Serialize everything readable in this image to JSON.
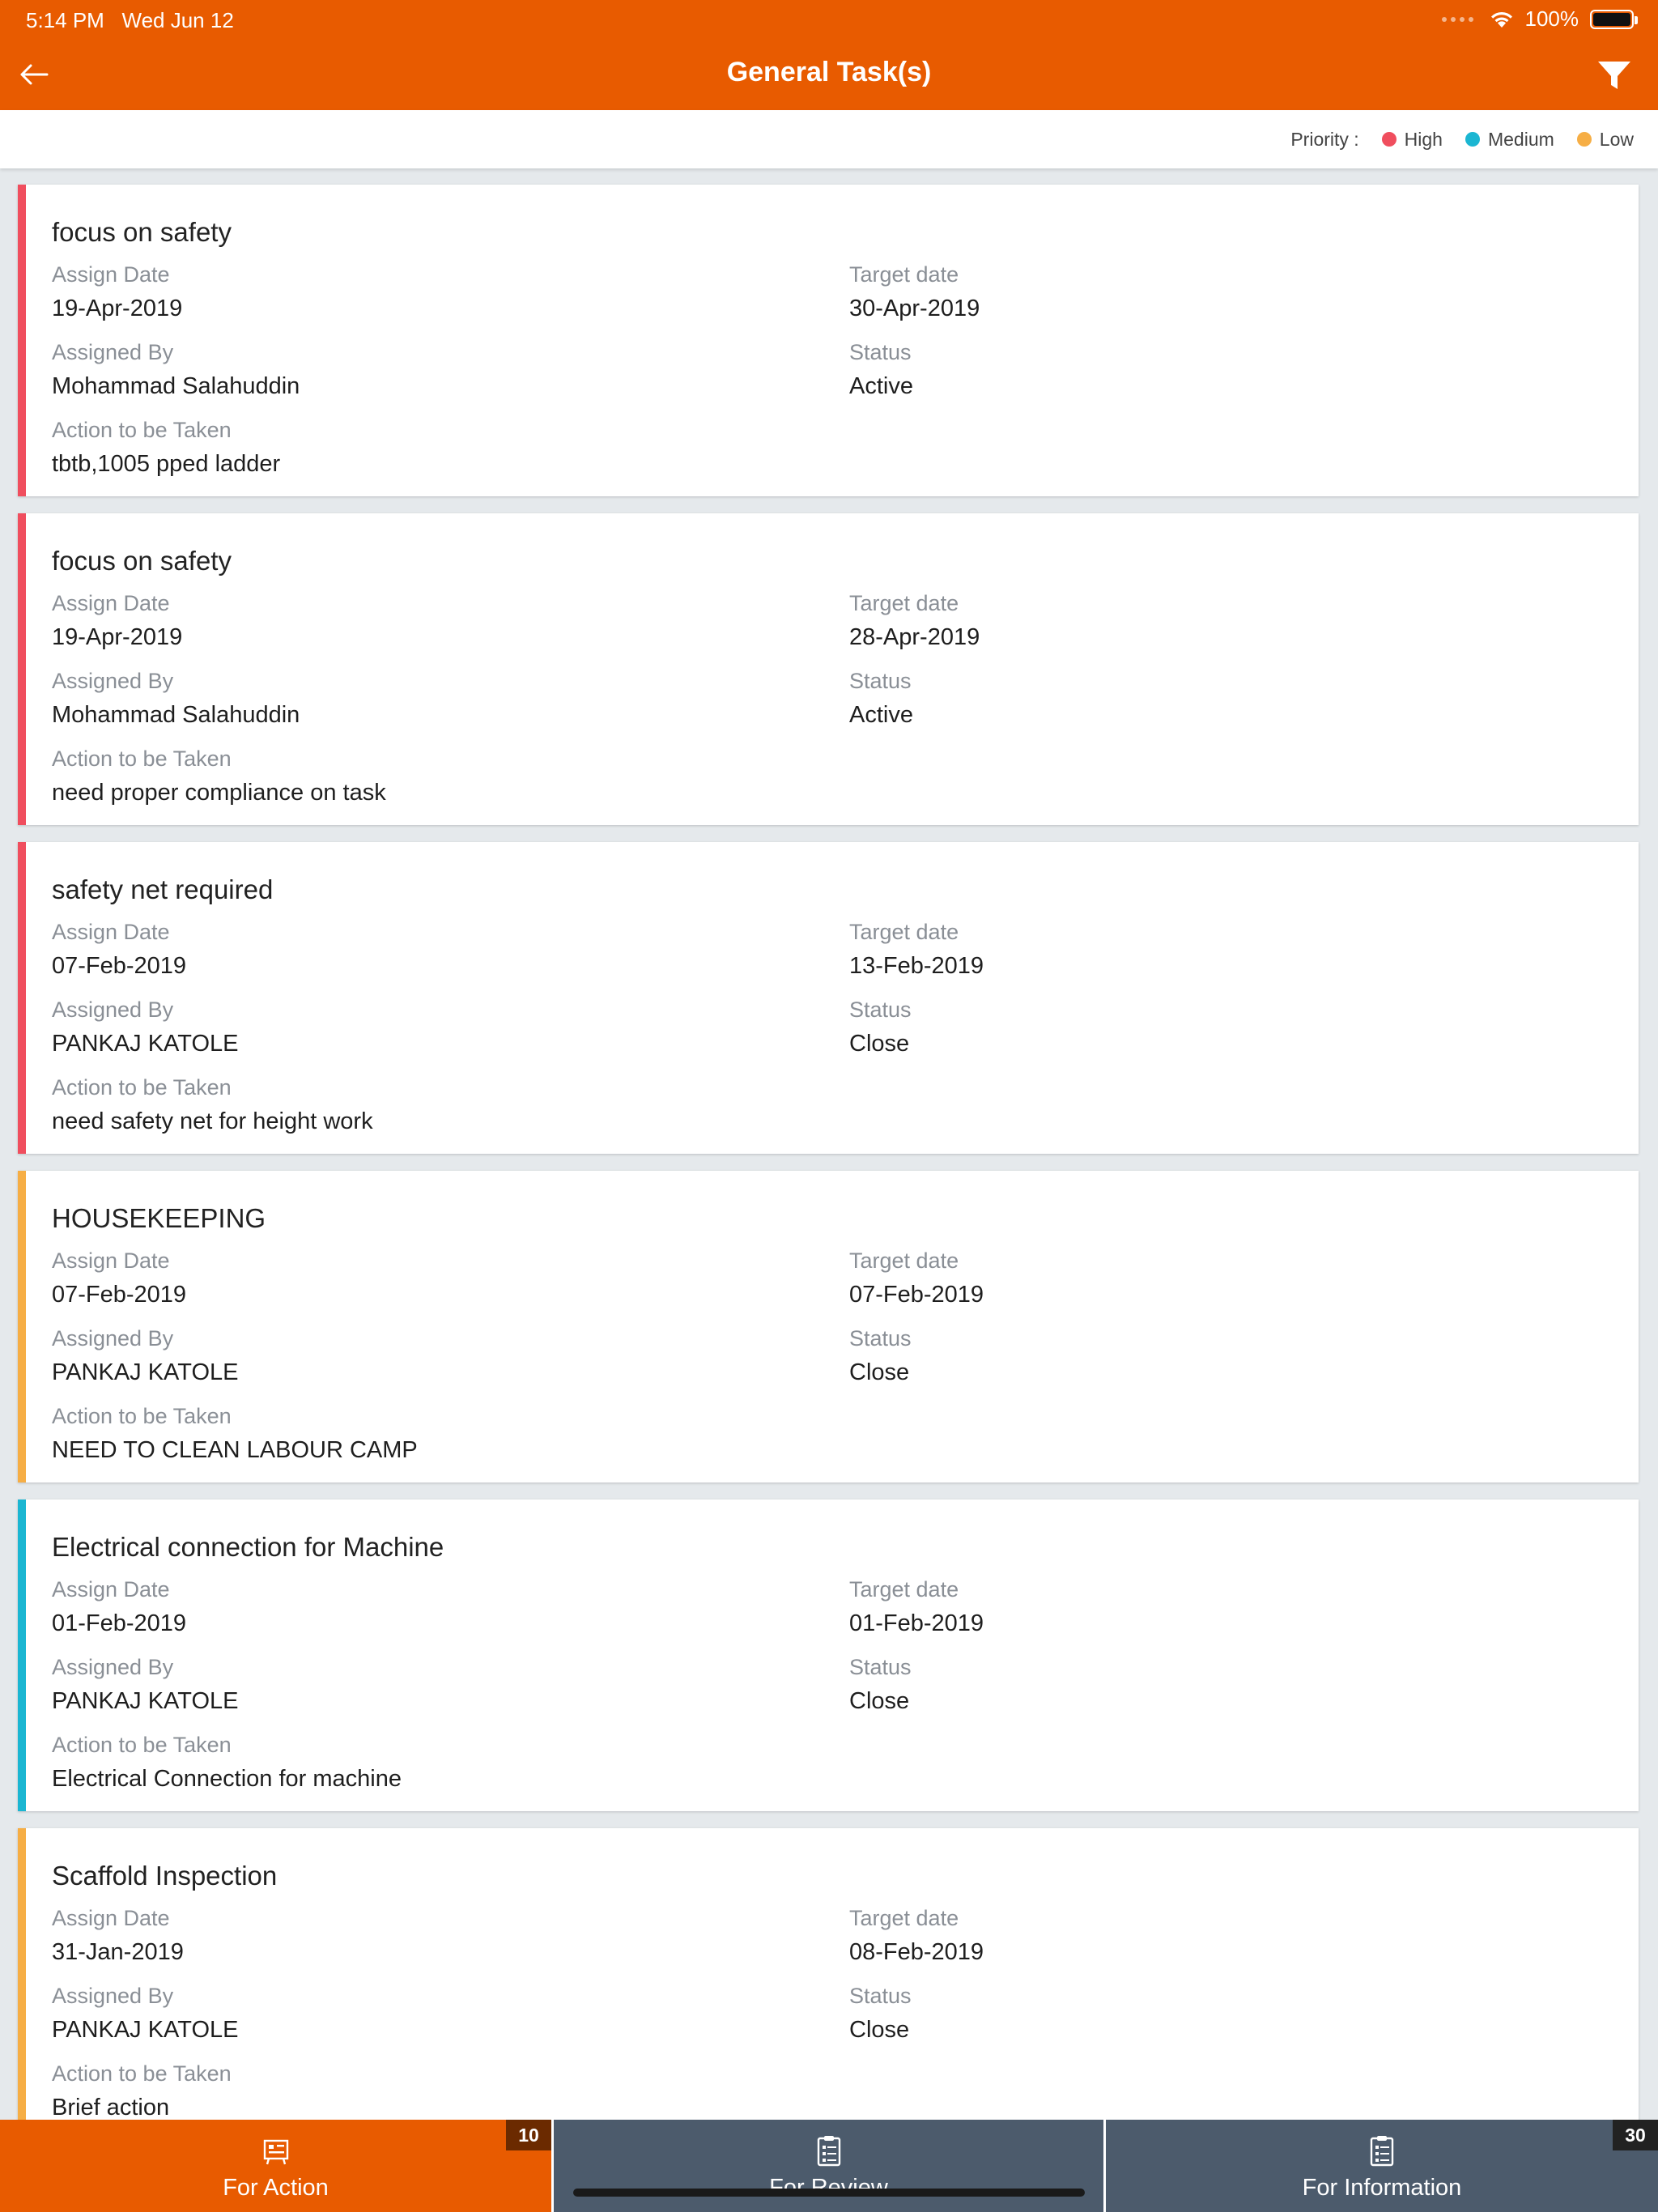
{
  "status_bar": {
    "time": "5:14 PM",
    "date": "Wed Jun 12",
    "battery": "100%"
  },
  "header": {
    "title": "General Task(s)"
  },
  "legend": {
    "label": "Priority :",
    "items": [
      {
        "label": "High",
        "color": "#f04e5e"
      },
      {
        "label": "Medium",
        "color": "#1bb6d2"
      },
      {
        "label": "Low",
        "color": "#f6ae45"
      }
    ]
  },
  "labels": {
    "assign_date": "Assign Date",
    "target_date": "Target date",
    "assigned_by": "Assigned By",
    "status": "Status",
    "action": "Action to be Taken"
  },
  "tasks": [
    {
      "title": "focus on safety",
      "assign_date": "19-Apr-2019",
      "target_date": "30-Apr-2019",
      "assigned_by": "Mohammad Salahuddin",
      "status": "Active",
      "action": "tbtb,1005 pped ladder",
      "priority_color": "#f04e5e"
    },
    {
      "title": "focus on safety",
      "assign_date": "19-Apr-2019",
      "target_date": "28-Apr-2019",
      "assigned_by": "Mohammad Salahuddin",
      "status": "Active",
      "action": "need proper compliance on task",
      "priority_color": "#f04e5e"
    },
    {
      "title": "safety net required",
      "assign_date": "07-Feb-2019",
      "target_date": "13-Feb-2019",
      "assigned_by": "PANKAJ KATOLE",
      "status": "Close",
      "action": "need safety net for height work",
      "priority_color": "#f04e5e"
    },
    {
      "title": "HOUSEKEEPING",
      "assign_date": "07-Feb-2019",
      "target_date": "07-Feb-2019",
      "assigned_by": "PANKAJ KATOLE",
      "status": "Close",
      "action": "NEED TO CLEAN LABOUR CAMP",
      "priority_color": "#f6ae45"
    },
    {
      "title": "Electrical connection for Machine",
      "assign_date": "01-Feb-2019",
      "target_date": "01-Feb-2019",
      "assigned_by": "PANKAJ KATOLE",
      "status": "Close",
      "action": "Electrical Connection for machine",
      "priority_color": "#1bb6d2"
    },
    {
      "title": "Scaffold Inspection",
      "assign_date": "31-Jan-2019",
      "target_date": "08-Feb-2019",
      "assigned_by": "PANKAJ KATOLE",
      "status": "Close",
      "action": "Brief action",
      "priority_color": "#f6ae45"
    }
  ],
  "tabs": [
    {
      "label": "For Action",
      "badge": "10",
      "icon": "task-board-icon"
    },
    {
      "label": "For Review",
      "badge": "",
      "icon": "clipboard-icon"
    },
    {
      "label": "For Information",
      "badge": "30",
      "icon": "clipboard-icon"
    }
  ]
}
